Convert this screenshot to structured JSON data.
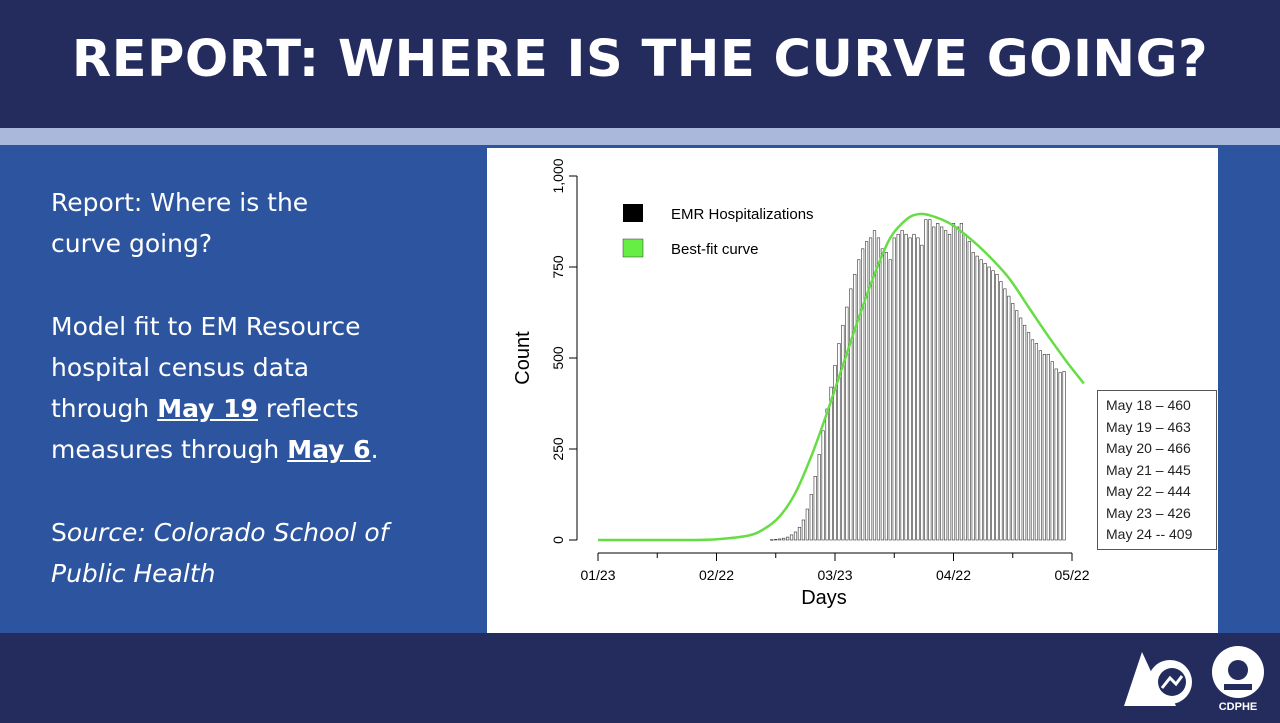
{
  "slide": {
    "title": "REPORT: WHERE IS THE CURVE GOING?"
  },
  "left_panel": {
    "heading_line1": "Report: Where is the",
    "heading_line2": "curve going?",
    "body_line1": "Model fit to EM Resource",
    "body_line2": "hospital census data",
    "body_line3_prefix": "through ",
    "body_line3_link": "May 19",
    "body_line3_suffix": " reflects",
    "body_line4_prefix": "measures through ",
    "body_line4_link": "May 6",
    "body_line4_suffix": ".",
    "source_s": "S",
    "source_rest": "ource: Colorado School of",
    "source_line2": "Public Health"
  },
  "value_box": {
    "items": [
      "May 18 – 460",
      "May 19 – 463",
      "May 20 – 466",
      "May 21 – 445",
      "May 22 – 444",
      "May 23 – 426",
      "May 24 -- 409"
    ]
  },
  "footer": {
    "logo_text": "CDPHE"
  },
  "chart_data": {
    "type": "bar",
    "xlabel": "Days",
    "ylabel": "Count",
    "ylim": [
      0,
      1000
    ],
    "y_ticks": [
      0,
      250,
      500,
      750,
      1000
    ],
    "y_tick_labels": [
      "0",
      "250",
      "500",
      "750",
      "1,000"
    ],
    "x_ticks": [
      "01/23",
      "02/22",
      "03/23",
      "04/22",
      "05/22"
    ],
    "x_tick_dates": [
      "2020-01-23",
      "2020-02-22",
      "2020-03-23",
      "2020-04-22",
      "2020-05-22"
    ],
    "legend": {
      "placement": "top-left",
      "entries": [
        {
          "label": "EMR Hospitalizations",
          "color": "#000000"
        },
        {
          "label": "Best-fit curve",
          "color": "#66dd44"
        }
      ]
    },
    "bars": {
      "name": "EMR Hospitalizations",
      "start_date": "2020-03-07",
      "values": [
        1,
        2,
        3,
        5,
        8,
        14,
        22,
        35,
        55,
        85,
        125,
        175,
        235,
        300,
        360,
        420,
        480,
        540,
        590,
        640,
        690,
        730,
        770,
        800,
        820,
        830,
        850,
        830,
        800,
        790,
        770,
        830,
        840,
        850,
        840,
        830,
        840,
        830,
        810,
        880,
        880,
        860,
        870,
        860,
        850,
        840,
        870,
        860,
        870,
        840,
        820,
        790,
        780,
        770,
        760,
        750,
        740,
        730,
        710,
        690,
        670,
        650,
        630,
        610,
        590,
        570,
        550,
        540,
        520,
        510,
        510,
        490,
        470,
        460,
        463
      ]
    },
    "curve": {
      "name": "Best-fit curve",
      "color": "#66dd44",
      "points": [
        [
          "2020-01-23",
          0
        ],
        [
          "2020-02-15",
          0
        ],
        [
          "2020-02-22",
          2
        ],
        [
          "2020-03-01",
          12
        ],
        [
          "2020-03-05",
          30
        ],
        [
          "2020-03-09",
          65
        ],
        [
          "2020-03-13",
          130
        ],
        [
          "2020-03-17",
          230
        ],
        [
          "2020-03-21",
          350
        ],
        [
          "2020-03-25",
          480
        ],
        [
          "2020-03-29",
          610
        ],
        [
          "2020-04-02",
          730
        ],
        [
          "2020-04-06",
          830
        ],
        [
          "2020-04-10",
          880
        ],
        [
          "2020-04-13",
          895
        ],
        [
          "2020-04-16",
          892
        ],
        [
          "2020-04-21",
          870
        ],
        [
          "2020-04-26",
          830
        ],
        [
          "2020-05-01",
          780
        ],
        [
          "2020-05-06",
          720
        ],
        [
          "2020-05-11",
          640
        ],
        [
          "2020-05-16",
          560
        ],
        [
          "2020-05-21",
          485
        ],
        [
          "2020-05-25",
          430
        ]
      ]
    }
  }
}
